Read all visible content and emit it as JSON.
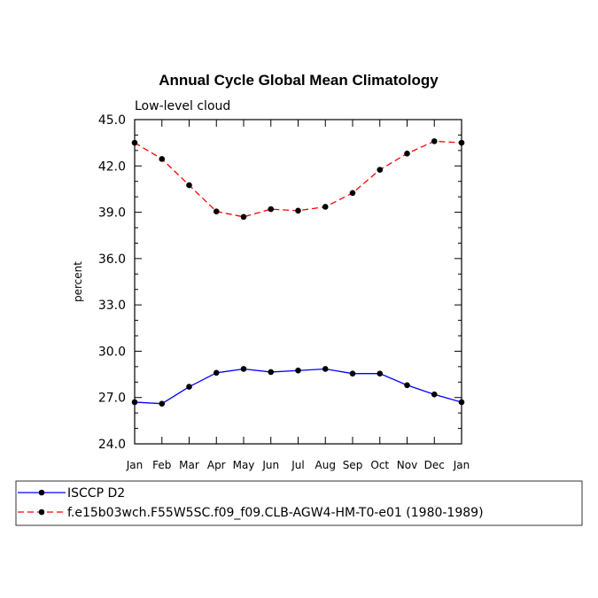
{
  "chart_data": {
    "type": "line",
    "title": "Annual Cycle Global Mean Climatology",
    "subtitle": "Low-level cloud",
    "xlabel": "",
    "ylabel": "percent",
    "categories": [
      "Jan",
      "Feb",
      "Mar",
      "Apr",
      "May",
      "Jun",
      "Jul",
      "Aug",
      "Sep",
      "Oct",
      "Nov",
      "Dec",
      "Jan"
    ],
    "ylim": [
      24.0,
      45.0
    ],
    "yticks": [
      "24.0",
      "27.0",
      "30.0",
      "33.0",
      "36.0",
      "39.0",
      "42.0",
      "45.0"
    ],
    "grid": false,
    "legend_position": "bottom",
    "series": [
      {
        "name": "ISCCP D2",
        "color": "#0000ff",
        "line_style": "solid",
        "values": [
          26.7,
          26.6,
          27.7,
          28.6,
          28.85,
          28.65,
          28.75,
          28.85,
          28.55,
          28.55,
          27.8,
          27.2,
          26.7
        ]
      },
      {
        "name": "f.e15b03wch.F55W5SC.f09_f09.CLB-AGW4-HM-T0-e01 (1980-1989)",
        "color": "#ff0000",
        "line_style": "dashed",
        "values": [
          43.5,
          42.45,
          40.75,
          39.05,
          38.7,
          39.2,
          39.1,
          39.35,
          40.25,
          41.75,
          42.8,
          43.6,
          43.5
        ]
      }
    ]
  }
}
